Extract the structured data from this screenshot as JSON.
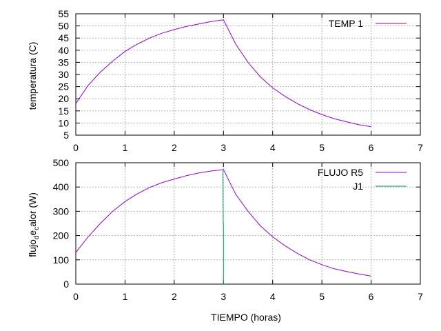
{
  "chart_data": [
    {
      "type": "line",
      "title": "",
      "xlabel": "",
      "ylabel": "temperatura (C)",
      "xlim": [
        0,
        7
      ],
      "ylim": [
        5,
        55
      ],
      "xticks": [
        "0",
        "1",
        "2",
        "3",
        "4",
        "5",
        "6",
        "7"
      ],
      "yticks": [
        "5",
        "10",
        "15",
        "20",
        "25",
        "30",
        "35",
        "40",
        "45",
        "50",
        "55"
      ],
      "grid": true,
      "legend_position": "top-right",
      "series": [
        {
          "name": "TEMP 1",
          "color": "#9400d3",
          "x": [
            0,
            0.25,
            0.5,
            0.75,
            1,
            1.25,
            1.5,
            1.75,
            2,
            2.25,
            2.5,
            2.75,
            3,
            3.25,
            3.5,
            3.75,
            4,
            4.25,
            4.5,
            4.75,
            5,
            5.25,
            5.5,
            5.75,
            6
          ],
          "y": [
            18,
            25.5,
            31,
            35.5,
            39.5,
            42.5,
            45,
            47,
            48.5,
            49.8,
            50.8,
            51.8,
            52.5,
            42.5,
            35,
            29,
            24.5,
            21,
            18,
            15.5,
            13.5,
            11.8,
            10.5,
            9.3,
            8.5
          ]
        }
      ]
    },
    {
      "type": "line",
      "title": "",
      "xlabel": "TIEMPO (horas)",
      "ylabel": "flujo_d e_c alor (W)",
      "ylabel_parts": [
        "flujo",
        "d",
        "e",
        "c",
        "alor (W)"
      ],
      "xlim": [
        0,
        7
      ],
      "ylim": [
        0,
        500
      ],
      "xticks": [
        "0",
        "1",
        "2",
        "3",
        "4",
        "5",
        "6",
        "7"
      ],
      "yticks": [
        "0",
        "100",
        "200",
        "300",
        "400",
        "500"
      ],
      "grid": true,
      "legend_position": "top-right",
      "series": [
        {
          "name": "FLUJO R5",
          "color": "#9400d3",
          "x": [
            0,
            0.25,
            0.5,
            0.75,
            1,
            1.25,
            1.5,
            1.75,
            2,
            2.25,
            2.5,
            2.75,
            3,
            3.25,
            3.5,
            3.75,
            4,
            4.25,
            4.5,
            4.75,
            5,
            5.25,
            5.5,
            5.75,
            6
          ],
          "y": [
            130,
            195,
            250,
            300,
            340,
            372,
            398,
            418,
            433,
            447,
            458,
            466,
            472,
            370,
            300,
            240,
            195,
            158,
            127,
            100,
            80,
            63,
            52,
            42,
            33
          ]
        },
        {
          "name": "J1",
          "color": "#009e73",
          "x": [
            2.99,
            2.995,
            3.0,
            3.0,
            3.0
          ],
          "y": [
            468,
            250,
            250,
            100,
            0
          ]
        }
      ]
    }
  ]
}
